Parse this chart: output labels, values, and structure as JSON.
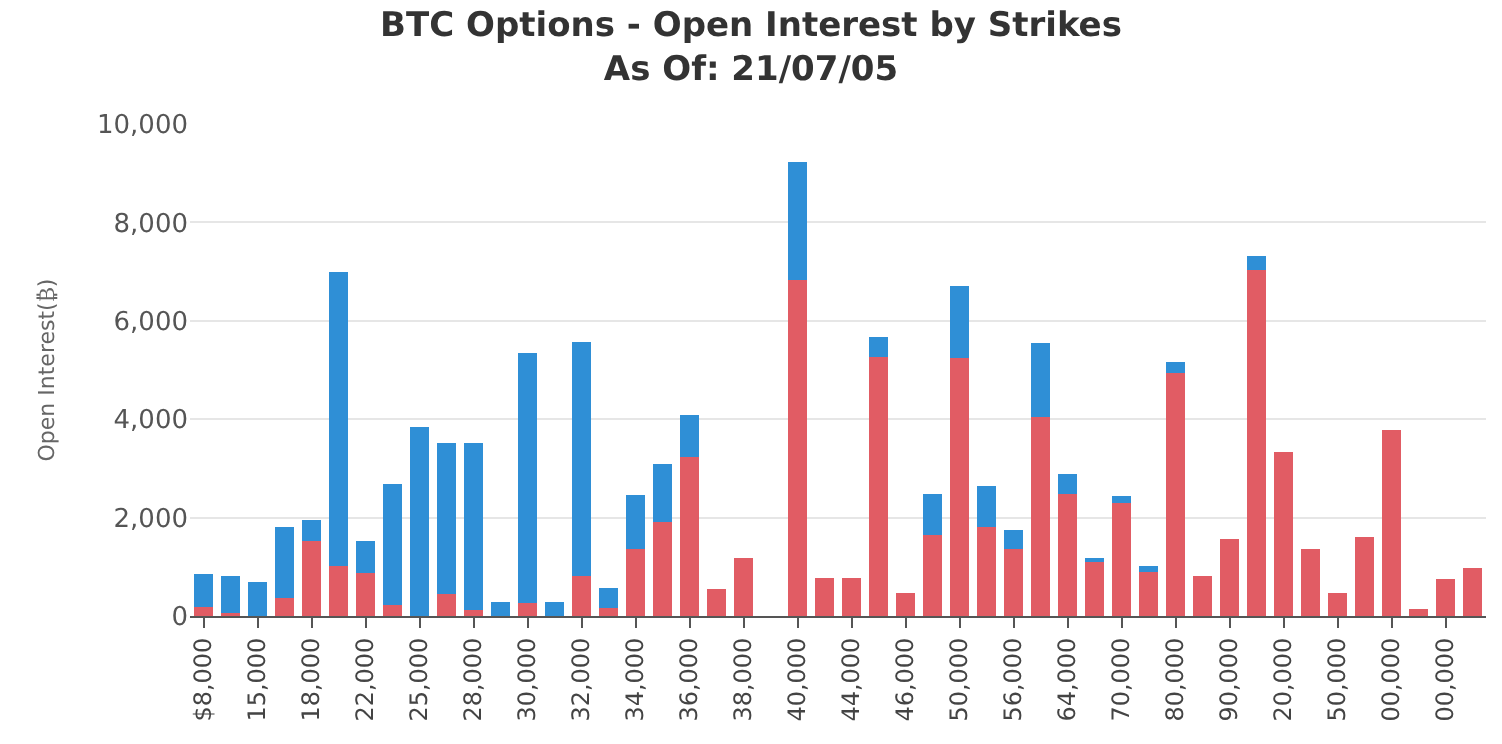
{
  "chart_data": {
    "type": "bar",
    "title": "BTC Options - Open Interest by Strikes\nAs Of: 21/07/05",
    "ylabel": "Open Interest(₿)",
    "categories": [
      "$8,000",
      null,
      "15,000",
      null,
      "18,000",
      null,
      "22,000",
      null,
      "25,000",
      null,
      "28,000",
      null,
      "30,000",
      null,
      "32,000",
      null,
      "34,000",
      null,
      "36,000",
      null,
      "38,000",
      null,
      "40,000",
      null,
      "44,000",
      null,
      "46,000",
      null,
      "50,000",
      null,
      "56,000",
      null,
      "64,000",
      null,
      "70,000",
      null,
      "80,000",
      null,
      "90,000",
      null,
      "20,000",
      null,
      "50,000",
      null,
      "00,000",
      null,
      "00,000",
      null
    ],
    "stacked": true,
    "series": [
      {
        "color": "#e15c64",
        "values": [
          190,
          60,
          0,
          370,
          1520,
          1020,
          870,
          220,
          null,
          440,
          120,
          0,
          270,
          null,
          820,
          170,
          1370,
          1920,
          3230,
          540,
          1170,
          null,
          6820,
          770,
          770,
          5260,
          470,
          1650,
          5240,
          1810,
          1370,
          4050,
          2470,
          1100,
          2290,
          900,
          4930,
          820,
          1570,
          7040,
          3340,
          1370,
          460,
          1610,
          3780,
          150,
          750,
          970
        ]
      },
      {
        "color": "#2f8fd6",
        "values": [
          660,
          750,
          690,
          1430,
          440,
          5980,
          660,
          2460,
          3850,
          3080,
          3400,
          290,
          5080,
          280,
          4740,
          400,
          1080,
          1160,
          850,
          0,
          0,
          null,
          2410,
          0,
          0,
          410,
          0,
          840,
          1460,
          830,
          380,
          1490,
          420,
          70,
          140,
          120,
          240,
          0,
          0,
          270,
          0,
          0,
          0,
          0,
          0,
          0,
          0,
          0
        ]
      }
    ],
    "ylim": [
      0,
      10000
    ],
    "yticks": [
      0,
      {
        "value": 2000,
        "label": "2,000"
      },
      {
        "value": 4000,
        "label": "4,000"
      },
      {
        "value": 6000,
        "label": "6,000"
      },
      {
        "value": 8000,
        "label": "8,000"
      },
      {
        "value": 10000,
        "label": "10,000"
      }
    ],
    "grid": "y"
  }
}
